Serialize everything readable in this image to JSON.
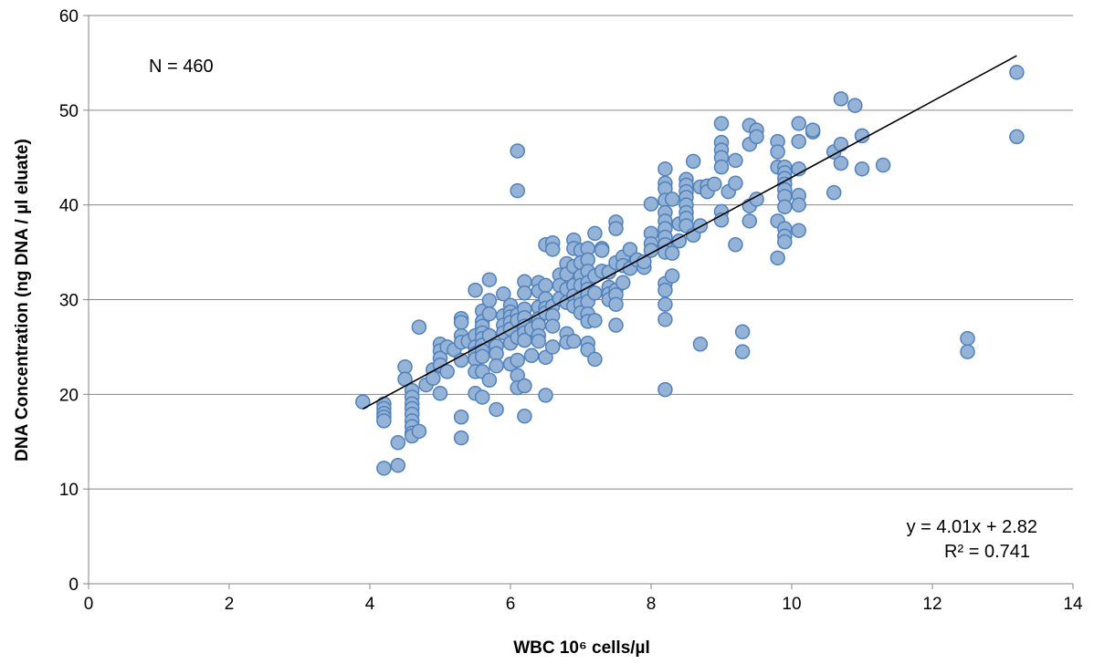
{
  "chart_data": {
    "type": "scatter",
    "xlabel": "WBC 10⁶ cells/µl",
    "ylabel": "DNA Concentration (ng DNA / µl eluate)",
    "xlim": [
      0,
      14
    ],
    "ylim": [
      0,
      60
    ],
    "x_ticks": [
      "0",
      "2",
      "4",
      "6",
      "8",
      "10",
      "12",
      "14"
    ],
    "y_ticks": [
      "0",
      "10",
      "20",
      "30",
      "40",
      "50",
      "60"
    ],
    "grid": "horizontal",
    "colors": {
      "marker_fill": "#95b3d7",
      "marker_stroke": "#4f81bd",
      "trendline": "#000000",
      "grid": "#868686"
    },
    "annotations": {
      "n_label": "N = 460",
      "equation": "y = 4.01x + 2.82",
      "r_squared": "R² = 0.741"
    },
    "trendline": {
      "slope": 4.01,
      "intercept": 2.82,
      "x_range": [
        3.9,
        13.2
      ]
    },
    "points": [
      [
        3.9,
        19.2
      ],
      [
        4.2,
        19.0
      ],
      [
        4.2,
        18.5
      ],
      [
        4.2,
        18.0
      ],
      [
        4.2,
        17.6
      ],
      [
        4.2,
        17.2
      ],
      [
        4.2,
        12.2
      ],
      [
        4.4,
        12.5
      ],
      [
        4.4,
        14.9
      ],
      [
        4.5,
        22.9
      ],
      [
        4.5,
        21.6
      ],
      [
        4.6,
        20.4
      ],
      [
        4.6,
        19.7
      ],
      [
        4.6,
        19.0
      ],
      [
        4.6,
        18.5
      ],
      [
        4.6,
        17.9
      ],
      [
        4.6,
        17.2
      ],
      [
        4.6,
        16.6
      ],
      [
        4.6,
        15.9
      ],
      [
        4.6,
        15.6
      ],
      [
        4.7,
        16.1
      ],
      [
        4.7,
        27.1
      ],
      [
        4.8,
        21.0
      ],
      [
        4.9,
        22.6
      ],
      [
        4.9,
        21.7
      ],
      [
        5.0,
        25.3
      ],
      [
        5.0,
        24.6
      ],
      [
        5.0,
        23.8
      ],
      [
        5.0,
        23.1
      ],
      [
        5.0,
        20.1
      ],
      [
        5.1,
        22.4
      ],
      [
        5.1,
        25.0
      ],
      [
        5.2,
        24.7
      ],
      [
        5.3,
        28.0
      ],
      [
        5.3,
        27.6
      ],
      [
        5.3,
        26.2
      ],
      [
        5.3,
        25.5
      ],
      [
        5.3,
        23.6
      ],
      [
        5.3,
        17.6
      ],
      [
        5.3,
        15.4
      ],
      [
        5.4,
        25.6
      ],
      [
        5.5,
        31.0
      ],
      [
        5.5,
        26.2
      ],
      [
        5.5,
        25.0
      ],
      [
        5.5,
        24.3
      ],
      [
        5.5,
        23.7
      ],
      [
        5.5,
        22.4
      ],
      [
        5.5,
        20.1
      ],
      [
        5.6,
        28.8
      ],
      [
        5.6,
        27.7
      ],
      [
        5.6,
        27.2
      ],
      [
        5.6,
        26.5
      ],
      [
        5.6,
        25.9
      ],
      [
        5.6,
        25.2
      ],
      [
        5.6,
        24.6
      ],
      [
        5.6,
        24.0
      ],
      [
        5.6,
        22.4
      ],
      [
        5.6,
        19.7
      ],
      [
        5.7,
        32.1
      ],
      [
        5.7,
        29.9
      ],
      [
        5.7,
        28.5
      ],
      [
        5.7,
        26.2
      ],
      [
        5.7,
        21.5
      ],
      [
        5.8,
        25.1
      ],
      [
        5.8,
        24.3
      ],
      [
        5.8,
        23.0
      ],
      [
        5.8,
        18.4
      ],
      [
        5.9,
        30.6
      ],
      [
        5.9,
        28.3
      ],
      [
        5.9,
        27.3
      ],
      [
        5.9,
        26.5
      ],
      [
        6.0,
        29.4
      ],
      [
        6.0,
        28.7
      ],
      [
        6.0,
        28.2
      ],
      [
        6.0,
        27.6
      ],
      [
        6.0,
        26.9
      ],
      [
        6.0,
        25.4
      ],
      [
        6.0,
        23.2
      ],
      [
        6.1,
        45.7
      ],
      [
        6.1,
        41.5
      ],
      [
        6.1,
        28.4
      ],
      [
        6.1,
        27.8
      ],
      [
        6.1,
        26.0
      ],
      [
        6.1,
        23.6
      ],
      [
        6.1,
        22.0
      ],
      [
        6.1,
        20.7
      ],
      [
        6.2,
        31.9
      ],
      [
        6.2,
        30.7
      ],
      [
        6.2,
        29.0
      ],
      [
        6.2,
        28.1
      ],
      [
        6.2,
        27.2
      ],
      [
        6.2,
        26.5
      ],
      [
        6.2,
        25.7
      ],
      [
        6.2,
        20.9
      ],
      [
        6.2,
        17.7
      ],
      [
        6.3,
        26.9
      ],
      [
        6.3,
        24.1
      ],
      [
        6.4,
        31.8
      ],
      [
        6.4,
        30.9
      ],
      [
        6.4,
        29.2
      ],
      [
        6.4,
        28.0
      ],
      [
        6.4,
        27.3
      ],
      [
        6.4,
        26.2
      ],
      [
        6.4,
        25.6
      ],
      [
        6.5,
        35.8
      ],
      [
        6.5,
        31.5
      ],
      [
        6.5,
        30.1
      ],
      [
        6.5,
        29.1
      ],
      [
        6.5,
        28.6
      ],
      [
        6.5,
        23.9
      ],
      [
        6.5,
        19.9
      ],
      [
        6.6,
        36.0
      ],
      [
        6.6,
        35.3
      ],
      [
        6.6,
        29.3
      ],
      [
        6.6,
        28.3
      ],
      [
        6.6,
        27.2
      ],
      [
        6.6,
        25.0
      ],
      [
        6.7,
        32.6
      ],
      [
        6.7,
        31.5
      ],
      [
        6.7,
        30.1
      ],
      [
        6.8,
        33.8
      ],
      [
        6.8,
        32.7
      ],
      [
        6.8,
        31.1
      ],
      [
        6.8,
        29.7
      ],
      [
        6.8,
        26.4
      ],
      [
        6.8,
        25.5
      ],
      [
        6.9,
        36.3
      ],
      [
        6.9,
        35.4
      ],
      [
        6.9,
        33.5
      ],
      [
        6.9,
        31.5
      ],
      [
        6.9,
        30.4
      ],
      [
        6.9,
        29.3
      ],
      [
        6.9,
        25.6
      ],
      [
        7.0,
        35.2
      ],
      [
        7.0,
        33.9
      ],
      [
        7.0,
        32.5
      ],
      [
        7.0,
        31.5
      ],
      [
        7.0,
        30.2
      ],
      [
        7.0,
        29.5
      ],
      [
        7.0,
        28.6
      ],
      [
        7.1,
        35.4
      ],
      [
        7.1,
        34.2
      ],
      [
        7.1,
        33.0
      ],
      [
        7.1,
        31.8
      ],
      [
        7.1,
        31.1
      ],
      [
        7.1,
        30.5
      ],
      [
        7.1,
        29.8
      ],
      [
        7.1,
        28.5
      ],
      [
        7.1,
        27.7
      ],
      [
        7.1,
        25.4
      ],
      [
        7.1,
        24.7
      ],
      [
        7.2,
        37.0
      ],
      [
        7.2,
        32.5
      ],
      [
        7.2,
        30.7
      ],
      [
        7.2,
        27.8
      ],
      [
        7.2,
        23.7
      ],
      [
        7.3,
        35.4
      ],
      [
        7.3,
        35.2
      ],
      [
        7.3,
        33.0
      ],
      [
        7.4,
        32.9
      ],
      [
        7.4,
        31.3
      ],
      [
        7.4,
        30.6
      ],
      [
        7.4,
        30.0
      ],
      [
        7.5,
        38.2
      ],
      [
        7.5,
        37.5
      ],
      [
        7.5,
        33.9
      ],
      [
        7.5,
        31.0
      ],
      [
        7.5,
        30.5
      ],
      [
        7.5,
        29.5
      ],
      [
        7.5,
        27.3
      ],
      [
        7.6,
        34.5
      ],
      [
        7.6,
        33.6
      ],
      [
        7.6,
        31.8
      ],
      [
        7.7,
        35.3
      ],
      [
        7.7,
        33.3
      ],
      [
        7.8,
        34.2
      ],
      [
        7.9,
        33.4
      ],
      [
        7.9,
        34.0
      ],
      [
        8.0,
        40.1
      ],
      [
        8.0,
        37.0
      ],
      [
        8.0,
        35.9
      ],
      [
        8.0,
        35.2
      ],
      [
        8.2,
        43.8
      ],
      [
        8.2,
        42.3
      ],
      [
        8.2,
        41.7
      ],
      [
        8.2,
        40.5
      ],
      [
        8.2,
        39.2
      ],
      [
        8.2,
        38.3
      ],
      [
        8.2,
        37.5
      ],
      [
        8.2,
        36.6
      ],
      [
        8.2,
        35.8
      ],
      [
        8.2,
        35.0
      ],
      [
        8.2,
        31.7
      ],
      [
        8.2,
        31.0
      ],
      [
        8.2,
        29.5
      ],
      [
        8.2,
        27.9
      ],
      [
        8.2,
        20.5
      ],
      [
        8.3,
        40.6
      ],
      [
        8.3,
        34.9
      ],
      [
        8.3,
        32.5
      ],
      [
        8.4,
        38.0
      ],
      [
        8.4,
        36.2
      ],
      [
        8.5,
        42.7
      ],
      [
        8.5,
        42.1
      ],
      [
        8.5,
        41.4
      ],
      [
        8.5,
        40.8
      ],
      [
        8.5,
        40.0
      ],
      [
        8.5,
        39.2
      ],
      [
        8.5,
        38.6
      ],
      [
        8.5,
        37.8
      ],
      [
        8.6,
        44.6
      ],
      [
        8.6,
        36.8
      ],
      [
        8.7,
        41.9
      ],
      [
        8.7,
        37.8
      ],
      [
        8.7,
        25.3
      ],
      [
        8.8,
        42.0
      ],
      [
        8.8,
        41.4
      ],
      [
        8.9,
        42.2
      ],
      [
        9.0,
        48.6
      ],
      [
        9.0,
        46.6
      ],
      [
        9.0,
        45.8
      ],
      [
        9.0,
        45.0
      ],
      [
        9.0,
        44.0
      ],
      [
        9.0,
        39.3
      ],
      [
        9.0,
        38.4
      ],
      [
        9.1,
        41.4
      ],
      [
        9.2,
        44.7
      ],
      [
        9.2,
        42.3
      ],
      [
        9.2,
        35.8
      ],
      [
        9.3,
        26.6
      ],
      [
        9.3,
        24.5
      ],
      [
        9.4,
        48.4
      ],
      [
        9.4,
        46.4
      ],
      [
        9.4,
        39.9
      ],
      [
        9.4,
        38.3
      ],
      [
        9.5,
        47.9
      ],
      [
        9.5,
        47.2
      ],
      [
        9.5,
        40.6
      ],
      [
        9.8,
        46.7
      ],
      [
        9.8,
        45.6
      ],
      [
        9.8,
        44.0
      ],
      [
        9.8,
        38.3
      ],
      [
        9.8,
        34.4
      ],
      [
        9.9,
        44.0
      ],
      [
        9.9,
        43.4
      ],
      [
        9.9,
        42.8
      ],
      [
        9.9,
        42.2
      ],
      [
        9.9,
        41.6
      ],
      [
        9.9,
        40.9
      ],
      [
        9.9,
        39.8
      ],
      [
        9.9,
        37.5
      ],
      [
        9.9,
        36.7
      ],
      [
        9.9,
        36.1
      ],
      [
        10.1,
        48.6
      ],
      [
        10.1,
        46.7
      ],
      [
        10.1,
        43.8
      ],
      [
        10.1,
        41.0
      ],
      [
        10.1,
        40.0
      ],
      [
        10.1,
        37.3
      ],
      [
        10.3,
        47.7
      ],
      [
        10.3,
        47.9
      ],
      [
        10.6,
        45.6
      ],
      [
        10.6,
        41.3
      ],
      [
        10.7,
        51.2
      ],
      [
        10.7,
        46.4
      ],
      [
        10.7,
        44.4
      ],
      [
        10.9,
        50.5
      ],
      [
        11.0,
        47.3
      ],
      [
        11.0,
        43.8
      ],
      [
        11.3,
        44.2
      ],
      [
        12.5,
        25.9
      ],
      [
        12.5,
        24.5
      ],
      [
        13.2,
        54.0
      ],
      [
        13.2,
        47.2
      ]
    ]
  }
}
